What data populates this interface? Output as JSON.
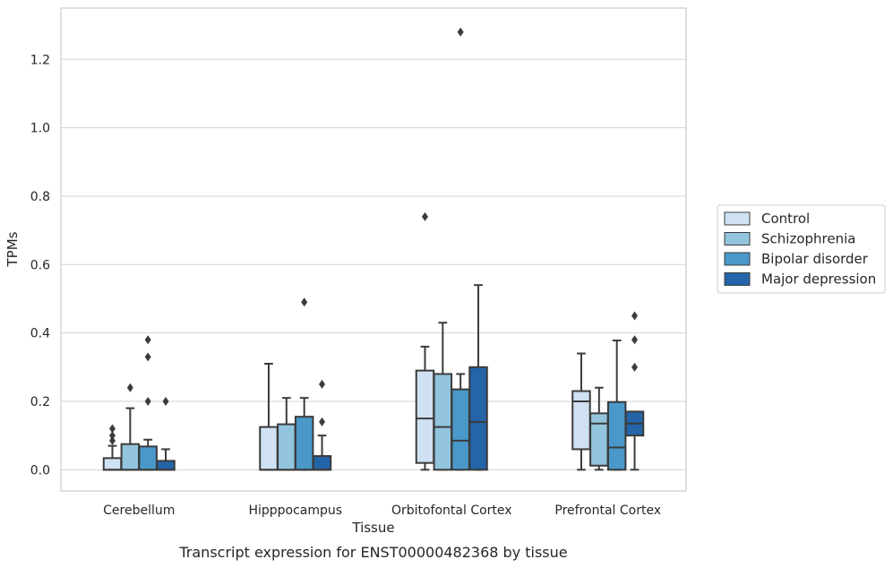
{
  "caption": "Transcript expression for ENST00000482368 by tissue",
  "chart_data": {
    "type": "boxplot",
    "title": "",
    "xlabel": "Tissue",
    "ylabel": "TPMs",
    "ylim": [
      -0.062,
      1.35
    ],
    "yticks": [
      0.0,
      0.2,
      0.4,
      0.6,
      0.8,
      1.0,
      1.2
    ],
    "ytick_labels": [
      "0.0",
      "0.2",
      "0.4",
      "0.6",
      "0.8",
      "1.0",
      "1.2"
    ],
    "grid": "horizontal",
    "legend_position": "right",
    "categories": [
      "Cerebellum",
      "Hipppocampus",
      "Orbitofontal Cortex",
      "Prefrontal Cortex"
    ],
    "series": [
      {
        "name": "Control",
        "color": "#cfe1f2",
        "boxes": [
          {
            "whislo": 0.0,
            "q1": 0.0,
            "med": 0.0,
            "q3": 0.034,
            "whishi": 0.07,
            "fliers": [
              0.085,
              0.1,
              0.12
            ]
          },
          {
            "whislo": 0.0,
            "q1": 0.0,
            "med": 0.0,
            "q3": 0.125,
            "whishi": 0.31,
            "fliers": []
          },
          {
            "whislo": 0.0,
            "q1": 0.02,
            "med": 0.15,
            "q3": 0.29,
            "whishi": 0.36,
            "fliers": [
              0.74
            ]
          },
          {
            "whislo": 0.0,
            "q1": 0.06,
            "med": 0.2,
            "q3": 0.23,
            "whishi": 0.34,
            "fliers": []
          }
        ]
      },
      {
        "name": "Schizophrenia",
        "color": "#93c4de",
        "boxes": [
          {
            "whislo": 0.0,
            "q1": 0.0,
            "med": 0.0,
            "q3": 0.075,
            "whishi": 0.18,
            "fliers": [
              0.24
            ]
          },
          {
            "whislo": 0.0,
            "q1": 0.0,
            "med": 0.0,
            "q3": 0.133,
            "whishi": 0.21,
            "fliers": []
          },
          {
            "whislo": 0.0,
            "q1": 0.0,
            "med": 0.125,
            "q3": 0.28,
            "whishi": 0.43,
            "fliers": []
          },
          {
            "whislo": 0.0,
            "q1": 0.012,
            "med": 0.135,
            "q3": 0.165,
            "whishi": 0.24,
            "fliers": []
          }
        ]
      },
      {
        "name": "Bipolar disorder",
        "color": "#4a98c9",
        "boxes": [
          {
            "whislo": 0.0,
            "q1": 0.0,
            "med": 0.0,
            "q3": 0.068,
            "whishi": 0.088,
            "fliers": [
              0.2,
              0.33,
              0.38
            ]
          },
          {
            "whislo": 0.0,
            "q1": 0.0,
            "med": 0.0,
            "q3": 0.155,
            "whishi": 0.21,
            "fliers": [
              0.49
            ]
          },
          {
            "whislo": 0.0,
            "q1": 0.0,
            "med": 0.085,
            "q3": 0.235,
            "whishi": 0.28,
            "fliers": [
              1.28
            ]
          },
          {
            "whislo": 0.0,
            "q1": 0.0,
            "med": 0.065,
            "q3": 0.198,
            "whishi": 0.378,
            "fliers": []
          }
        ]
      },
      {
        "name": "Major depression",
        "color": "#2464a8",
        "boxes": [
          {
            "whislo": 0.0,
            "q1": 0.0,
            "med": 0.0,
            "q3": 0.026,
            "whishi": 0.06,
            "fliers": [
              0.2
            ]
          },
          {
            "whislo": 0.0,
            "q1": 0.0,
            "med": 0.0,
            "q3": 0.04,
            "whishi": 0.1,
            "fliers": [
              0.14,
              0.25
            ]
          },
          {
            "whislo": 0.0,
            "q1": 0.0,
            "med": 0.14,
            "q3": 0.3,
            "whishi": 0.54,
            "fliers": []
          },
          {
            "whislo": 0.0,
            "q1": 0.1,
            "med": 0.135,
            "q3": 0.17,
            "whishi": 0.17,
            "fliers": [
              0.3,
              0.38,
              0.45
            ]
          }
        ]
      }
    ]
  }
}
